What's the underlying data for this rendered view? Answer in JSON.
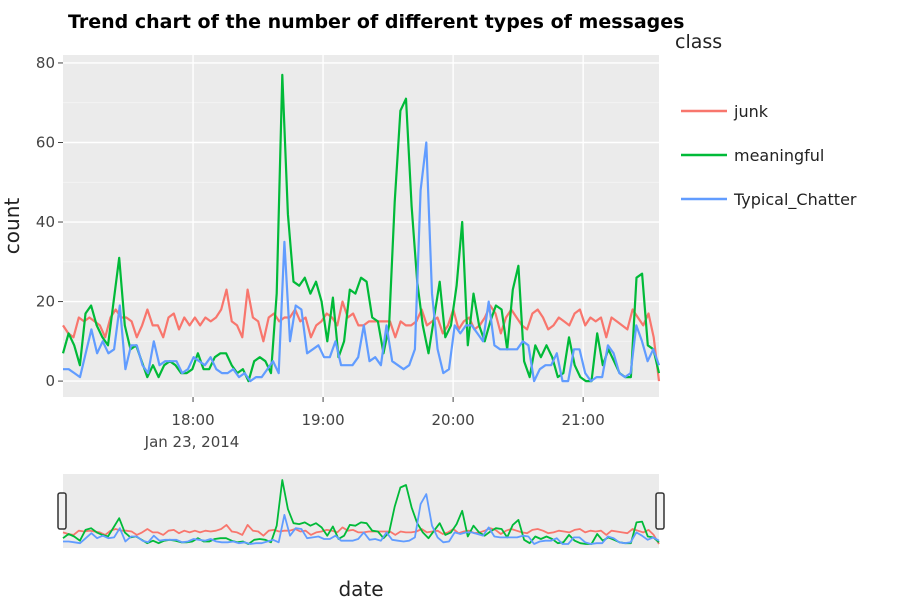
{
  "chart_data": {
    "type": "line",
    "title": "Trend chart of the number of different types of messages",
    "xlabel": "date",
    "ylabel": "count",
    "x_tick_labels": [
      "18:00",
      "19:00",
      "20:00",
      "21:00"
    ],
    "x_tick_sublabel": "Jan 23, 2014",
    "y_tick_labels": [
      "0",
      "20",
      "40",
      "60",
      "80"
    ],
    "ylim": [
      -4,
      82
    ],
    "x_start": "2014-01-23 17:00",
    "x_end": "2014-01-23 21:35",
    "interval_minutes": 2.5,
    "grid": true,
    "legend": {
      "title": "class",
      "position": "right"
    },
    "range_slider": true,
    "series": [
      {
        "name": "junk",
        "color": "#F8766D",
        "values": [
          14,
          12,
          11,
          16,
          15,
          16,
          15,
          14,
          11,
          16,
          18,
          16,
          16,
          15,
          11,
          14,
          18,
          14,
          14,
          11,
          16,
          17,
          13,
          16,
          14,
          16,
          14,
          16,
          15,
          16,
          18,
          23,
          15,
          14,
          11,
          23,
          16,
          15,
          10,
          16,
          17,
          15,
          16,
          16,
          18,
          15,
          16,
          11,
          14,
          15,
          17,
          16,
          14,
          20,
          16,
          17,
          14,
          14,
          15,
          15,
          15,
          15,
          15,
          11,
          15,
          14,
          14,
          15,
          18,
          14,
          15,
          16,
          12,
          14,
          18,
          13,
          15,
          16,
          13,
          14,
          16,
          19,
          17,
          12,
          16,
          18,
          16,
          14,
          13,
          17,
          18,
          16,
          13,
          14,
          16,
          15,
          14,
          17,
          18,
          14,
          16,
          15,
          16,
          11,
          16,
          15,
          14,
          13,
          18,
          16,
          14,
          17,
          11,
          0
        ]
      },
      {
        "name": "meaningful",
        "color": "#00BA38",
        "values": [
          7,
          12,
          9,
          4,
          17,
          19,
          14,
          11,
          9,
          20,
          31,
          14,
          8,
          9,
          5,
          1,
          4,
          1,
          4,
          5,
          4,
          2,
          2,
          3,
          7,
          3,
          3,
          6,
          7,
          7,
          4,
          2,
          3,
          0,
          5,
          6,
          5,
          2,
          22,
          77,
          42,
          25,
          24,
          26,
          22,
          25,
          20,
          10,
          21,
          6,
          10,
          23,
          22,
          26,
          25,
          16,
          15,
          7,
          14,
          45,
          68,
          71,
          44,
          25,
          14,
          7,
          16,
          25,
          11,
          14,
          24,
          40,
          9,
          22,
          14,
          10,
          15,
          19,
          18,
          8,
          23,
          29,
          5,
          1,
          9,
          6,
          9,
          6,
          1,
          2,
          11,
          4,
          1,
          0,
          0,
          12,
          4,
          8,
          5,
          2,
          1,
          1,
          26,
          27,
          9,
          8,
          2
        ]
      },
      {
        "name": "Typical_Chatter",
        "color": "#619CFF",
        "values": [
          3,
          3,
          2,
          1,
          7,
          13,
          7,
          10,
          7,
          8,
          19,
          3,
          9,
          9,
          4,
          2,
          10,
          4,
          5,
          5,
          5,
          2,
          3,
          6,
          5,
          4,
          6,
          3,
          2,
          2,
          3,
          1,
          2,
          0,
          1,
          1,
          3,
          5,
          2,
          35,
          10,
          19,
          18,
          7,
          8,
          9,
          6,
          6,
          10,
          4,
          4,
          4,
          6,
          14,
          5,
          6,
          4,
          14,
          5,
          4,
          3,
          4,
          8,
          48,
          60,
          22,
          8,
          2,
          3,
          14,
          12,
          14,
          14,
          12,
          10,
          20,
          9,
          8,
          8,
          8,
          8,
          10,
          9,
          0,
          3,
          4,
          4,
          7,
          0,
          0,
          8,
          8,
          2,
          0,
          1,
          1,
          9,
          7,
          2,
          1,
          2,
          14,
          10,
          5,
          8,
          4
        ]
      }
    ]
  }
}
